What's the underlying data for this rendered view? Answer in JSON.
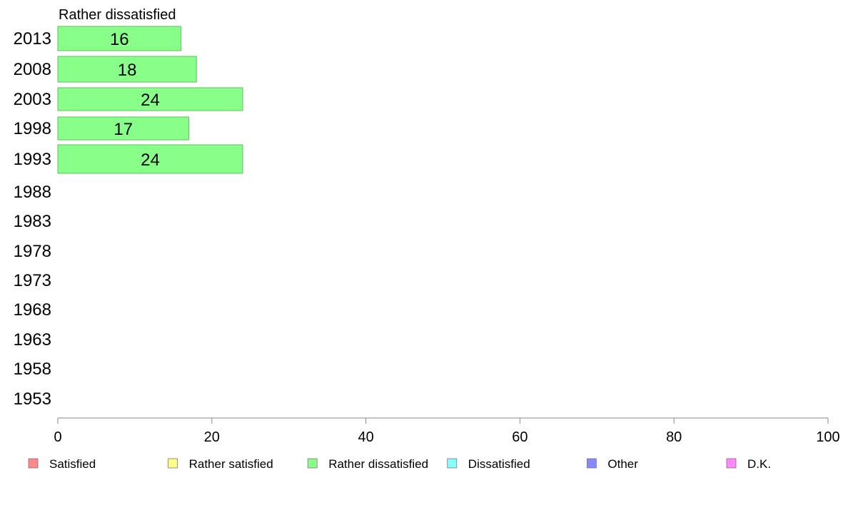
{
  "chart_data": {
    "type": "bar",
    "orientation": "horizontal",
    "title": "Rather dissatisfied",
    "categories": [
      "2013",
      "2008",
      "2003",
      "1998",
      "1993",
      "1988",
      "1983",
      "1978",
      "1973",
      "1968",
      "1963",
      "1958",
      "1953"
    ],
    "series": [
      {
        "name": "Rather dissatisfied",
        "color": "#88ff88",
        "values": [
          16,
          18,
          24,
          17,
          24,
          null,
          null,
          null,
          null,
          null,
          null,
          null,
          null
        ]
      }
    ],
    "xlim": [
      0,
      100
    ],
    "xticks": [
      0,
      20,
      40,
      60,
      80,
      100
    ],
    "grid": false,
    "legend_position": "bottom",
    "legend": [
      {
        "label": "Satisfied",
        "color": "#ff8888"
      },
      {
        "label": "Rather satisfied",
        "color": "#ffff88"
      },
      {
        "label": "Rather dissatisfied",
        "color": "#88ff88"
      },
      {
        "label": "Dissatisfied",
        "color": "#88ffff"
      },
      {
        "label": "Other",
        "color": "#8888ff"
      },
      {
        "label": "D.K.",
        "color": "#ff88ff"
      }
    ]
  }
}
